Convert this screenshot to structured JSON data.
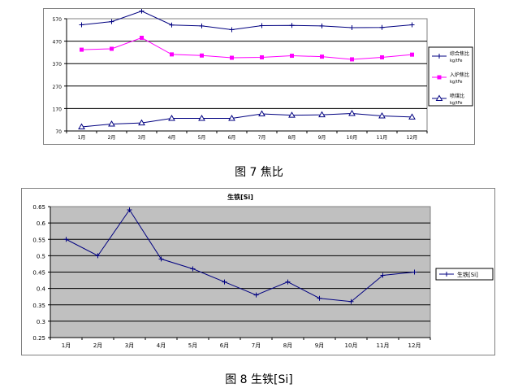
{
  "figure1": {
    "caption": "图 7    焦比",
    "chart_data": {
      "type": "line",
      "title": "",
      "categories": [
        "1月",
        "2月",
        "3月",
        "4月",
        "5月",
        "6月",
        "7月",
        "8月",
        "9月",
        "10月",
        "11月",
        "12月"
      ],
      "ylim": [
        70,
        570
      ],
      "yticks": [
        "70",
        "170",
        "270",
        "370",
        "470",
        "570"
      ],
      "grid": true,
      "legend_position": "right",
      "series": [
        {
          "name": "综合焦比 kg/tFe",
          "color": "#000080",
          "marker": "plus",
          "values": [
            543,
            557,
            604,
            542,
            538,
            521,
            539,
            540,
            538,
            530,
            531,
            543
          ]
        },
        {
          "name": "入炉焦比 kg/tFe",
          "color": "#ff00ff",
          "marker": "square",
          "values": [
            432,
            436,
            485,
            411,
            406,
            396,
            398,
            405,
            401,
            389,
            398,
            410
          ]
        },
        {
          "name": "喷煤比 kg/tFe",
          "color": "#000080",
          "marker": "triangle",
          "values": [
            88,
            101,
            106,
            126,
            126,
            126,
            146,
            140,
            142,
            148,
            137,
            132
          ]
        }
      ]
    }
  },
  "figure2": {
    "caption": "图 8    生铁[Si]",
    "chart_data": {
      "type": "line",
      "title": "生铁[Si]",
      "categories": [
        "1月",
        "2月",
        "3月",
        "4月",
        "5月",
        "6月",
        "7月",
        "8月",
        "9月",
        "10月",
        "11月",
        "12月"
      ],
      "ylim": [
        0.25,
        0.65
      ],
      "yticks": [
        "0.25",
        "0.3",
        "0.35",
        "0.4",
        "0.45",
        "0.5",
        "0.55",
        "0.6",
        "0.65"
      ],
      "grid": true,
      "legend_position": "right",
      "series": [
        {
          "name": "生铁[Si]",
          "color": "#000080",
          "marker": "plus",
          "values": [
            0.55,
            0.5,
            0.64,
            0.49,
            0.46,
            0.42,
            0.38,
            0.42,
            0.37,
            0.36,
            0.44,
            0.45
          ]
        }
      ]
    }
  }
}
